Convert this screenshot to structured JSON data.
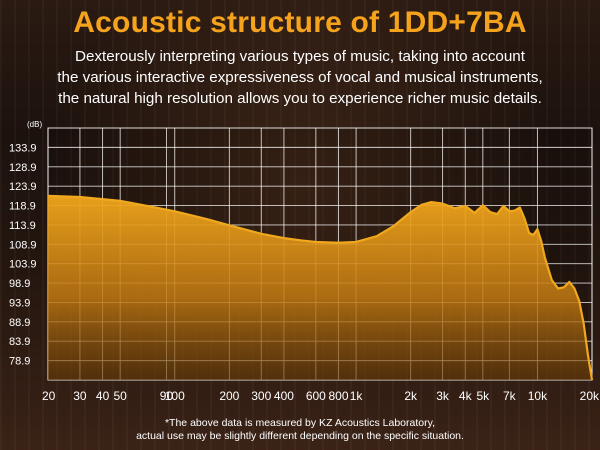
{
  "header": {
    "title": "Acoustic structure of 1DD+7BA",
    "description_lines": [
      "Dexterously interpreting various types of music, taking into account",
      "the various interactive expressiveness of vocal and musical instruments,",
      "the natural high resolution allows you to experience richer music details."
    ]
  },
  "footer": {
    "note_lines": [
      "*The above data is measured by KZ Acoustics Laboratory,",
      "actual use may be slightly different depending on the specific situation."
    ]
  },
  "colors": {
    "title": "#f5a21c",
    "curve": "#f0a81e",
    "fill_top": "#f2a71c",
    "fill_bottom": "#6a3d08",
    "grid": "#ffffff"
  },
  "chart_data": {
    "type": "area",
    "title": "Acoustic structure of 1DD+7BA",
    "y_unit": "(dB)",
    "x_scale": "log",
    "xlim": [
      20,
      20000
    ],
    "ylim": [
      73.9,
      138.9
    ],
    "grid": true,
    "y_ticks": [
      133.9,
      128.9,
      123.9,
      118.9,
      113.9,
      108.9,
      103.9,
      98.9,
      93.9,
      88.9,
      83.9,
      78.9
    ],
    "y_tick_labels": [
      "133.9",
      "128.9",
      "123.9",
      "118.9",
      "113.9",
      "108.9",
      "103.9",
      "98.9",
      "93.9",
      "88.9",
      "83.9",
      "78.9"
    ],
    "x_ticks": [
      20,
      30,
      40,
      50,
      90,
      100,
      200,
      300,
      400,
      600,
      800,
      1000,
      2000,
      3000,
      4000,
      5000,
      7000,
      10000,
      20000
    ],
    "x_tick_labels": [
      "20",
      "30",
      "40",
      "50",
      "90",
      "100",
      "200",
      "300",
      "400",
      "600",
      "800",
      "1k",
      "2k",
      "3k",
      "4k",
      "5k",
      "7k",
      "10k",
      "20k"
    ],
    "series": [
      {
        "x": [
          20,
          30,
          50,
          80,
          100,
          150,
          200,
          300,
          400,
          500,
          600,
          800,
          1000,
          1300,
          1600,
          2000,
          2300,
          2600,
          3000,
          3500,
          4000,
          4500,
          5000,
          5500,
          6000,
          6500,
          7000,
          7500,
          8000,
          8500,
          9000,
          9500,
          10000,
          10500,
          11000,
          12000,
          13000,
          14000,
          15000,
          16000,
          17000,
          18000,
          19000,
          20000
        ],
        "y": [
          121.4,
          121.1,
          120.1,
          118.3,
          117.4,
          115.4,
          113.8,
          111.6,
          110.5,
          109.9,
          109.5,
          109.3,
          109.5,
          111.0,
          113.5,
          117.2,
          119.1,
          119.8,
          119.4,
          118.2,
          118.8,
          117.0,
          119.0,
          117.2,
          116.7,
          118.8,
          117.4,
          117.6,
          118.4,
          115.5,
          111.8,
          111.3,
          112.8,
          109.7,
          105.4,
          99.7,
          97.5,
          97.8,
          99.2,
          97.5,
          94.3,
          88.4,
          80.3,
          73.9
        ]
      }
    ]
  }
}
